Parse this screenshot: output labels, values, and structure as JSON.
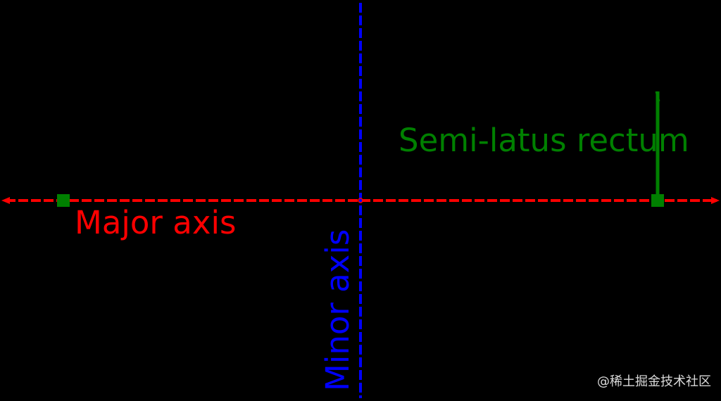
{
  "colors": {
    "background": "#000000",
    "major_axis": "#ff0000",
    "minor_axis": "#0000ff",
    "semi_latus_rectum": "#008000"
  },
  "labels": {
    "major_axis": "Major axis",
    "minor_axis": "Minor axis",
    "semi_latus_rectum": "Semi-latus rectum"
  },
  "watermark": "@稀土掘金技术社区"
}
